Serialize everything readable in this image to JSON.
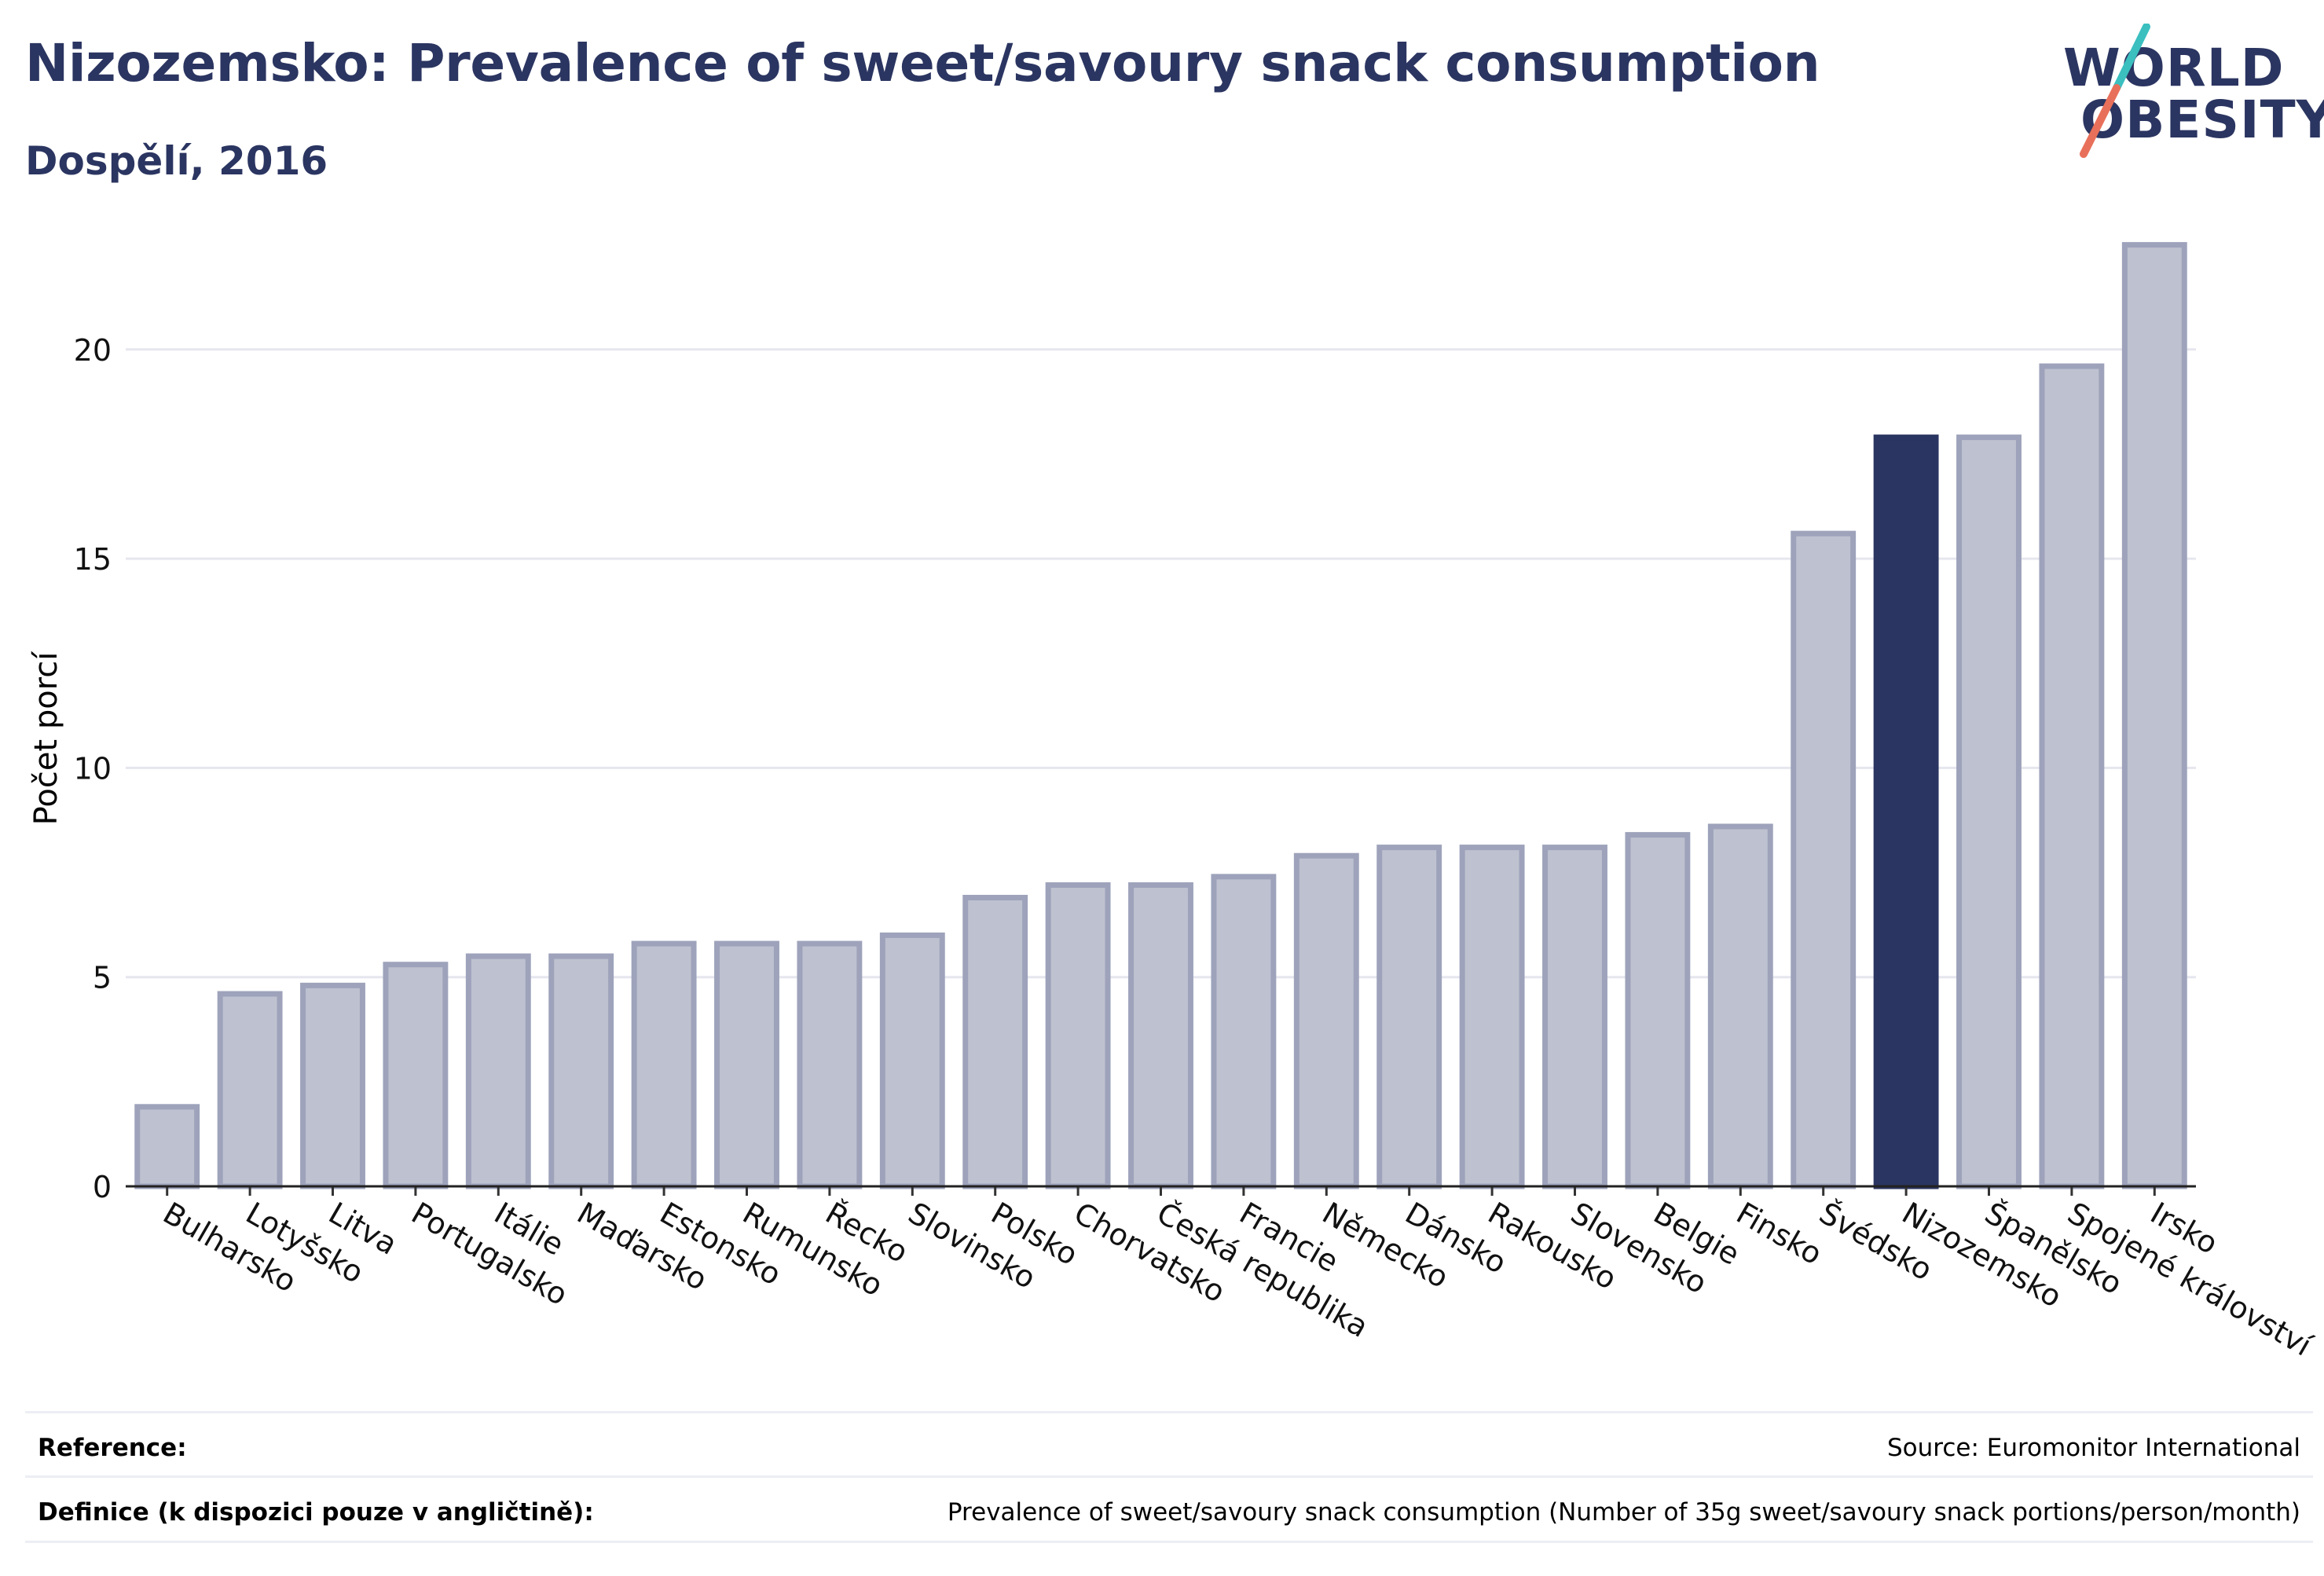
{
  "header": {
    "title": "Nizozemsko: Prevalence of sweet/savoury snack consumption",
    "subtitle": "Dospělí, 2016"
  },
  "logo": {
    "line1": "WORLD",
    "line2": "OBESITY",
    "colors": {
      "text": "#2b3561",
      "slash_top": "#3bbfbf",
      "slash_bottom": "#e8705a"
    }
  },
  "chart_data": {
    "type": "bar",
    "ylabel": "Počet porcí",
    "xlabel": "",
    "ylim": [
      0,
      23
    ],
    "yticks": [
      0,
      5,
      10,
      15,
      20
    ],
    "grid": true,
    "highlight": "Nizozemsko",
    "colors": {
      "bar": "#bec1cf",
      "bar_edge": "#9ea3bb",
      "highlight": "#2b3561",
      "grid": "#e6e6ef"
    },
    "categories": [
      "Bulharsko",
      "Lotyšsko",
      "Litva",
      "Portugalsko",
      "Itálie",
      "Maďarsko",
      "Estonsko",
      "Rumunsko",
      "Řecko",
      "Slovinsko",
      "Polsko",
      "Chorvatsko",
      "Česká republika",
      "Francie",
      "Německo",
      "Dánsko",
      "Rakousko",
      "Slovensko",
      "Belgie",
      "Finsko",
      "Švédsko",
      "Nizozemsko",
      "Španělsko",
      "Spojené království",
      "Irsko"
    ],
    "values": [
      1.9,
      4.6,
      4.8,
      5.3,
      5.5,
      5.5,
      5.8,
      5.8,
      5.8,
      6.0,
      6.9,
      7.2,
      7.2,
      7.4,
      7.9,
      8.1,
      8.1,
      8.1,
      8.4,
      8.6,
      15.6,
      17.9,
      17.9,
      19.6,
      22.5
    ]
  },
  "footer": {
    "reference_label": "Reference:",
    "reference_value": "Source: Euromonitor International",
    "definition_label": "Definice (k dispozici pouze v angličtině):",
    "definition_value": "Prevalence of sweet/savoury snack consumption (Number of 35g sweet/savoury snack portions/person/month)"
  }
}
